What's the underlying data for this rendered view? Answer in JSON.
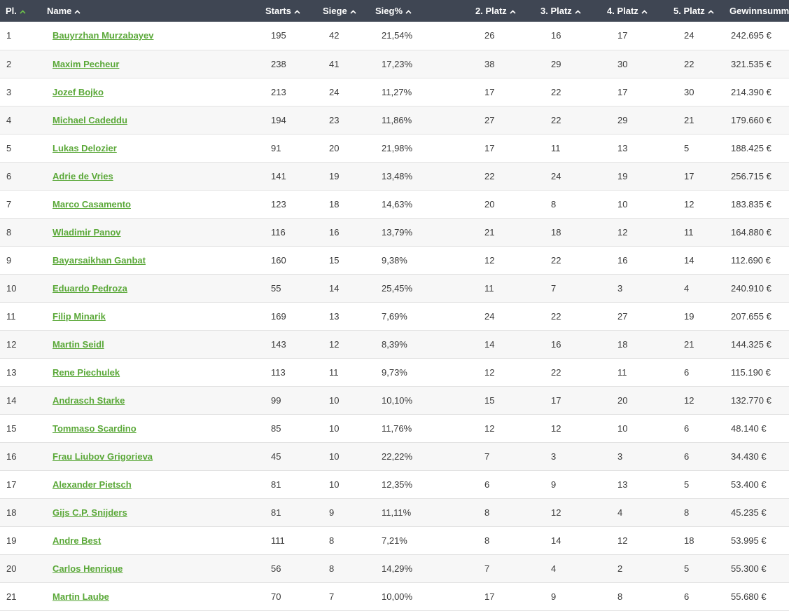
{
  "colors": {
    "header_bg": "#3f4653",
    "link": "#5aa838",
    "active_sort": "#6cc24a"
  },
  "columns": [
    {
      "key": "pl",
      "label": "Pl.",
      "sort_icon": "chevron-up-icon",
      "active": true
    },
    {
      "key": "name",
      "label": "Name",
      "sort_icon": "chevron-up-icon",
      "active": false
    },
    {
      "key": "starts",
      "label": "Starts",
      "sort_icon": "chevron-up-icon",
      "active": false
    },
    {
      "key": "siege",
      "label": "Siege",
      "sort_icon": "chevron-up-icon",
      "active": false
    },
    {
      "key": "siegpct",
      "label": "Sieg%",
      "sort_icon": "chevron-up-icon",
      "active": false
    },
    {
      "key": "p2",
      "label": "2. Platz",
      "sort_icon": "chevron-up-icon",
      "active": false
    },
    {
      "key": "p3",
      "label": "3. Platz",
      "sort_icon": "chevron-up-icon",
      "active": false
    },
    {
      "key": "p4",
      "label": "4. Platz",
      "sort_icon": "chevron-up-icon",
      "active": false
    },
    {
      "key": "p5",
      "label": "5. Platz",
      "sort_icon": "chevron-up-icon",
      "active": false
    },
    {
      "key": "gewinn",
      "label": "Gewinnsumme",
      "sort_icon": null,
      "active": false
    }
  ],
  "rows": [
    [
      "1",
      "Bauyrzhan Murzabayev",
      "195",
      "42",
      "21,54%",
      "26",
      "16",
      "17",
      "24",
      "242.695 €"
    ],
    [
      "2",
      "Maxim Pecheur",
      "238",
      "41",
      "17,23%",
      "38",
      "29",
      "30",
      "22",
      "321.535 €"
    ],
    [
      "3",
      "Jozef Bojko",
      "213",
      "24",
      "11,27%",
      "17",
      "22",
      "17",
      "30",
      "214.390 €"
    ],
    [
      "4",
      "Michael Cadeddu",
      "194",
      "23",
      "11,86%",
      "27",
      "22",
      "29",
      "21",
      "179.660 €"
    ],
    [
      "5",
      "Lukas Delozier",
      "91",
      "20",
      "21,98%",
      "17",
      "11",
      "13",
      "5",
      "188.425 €"
    ],
    [
      "6",
      "Adrie de Vries",
      "141",
      "19",
      "13,48%",
      "22",
      "24",
      "19",
      "17",
      "256.715 €"
    ],
    [
      "7",
      "Marco Casamento",
      "123",
      "18",
      "14,63%",
      "20",
      "8",
      "10",
      "12",
      "183.835 €"
    ],
    [
      "8",
      "Wladimir Panov",
      "116",
      "16",
      "13,79%",
      "21",
      "18",
      "12",
      "11",
      "164.880 €"
    ],
    [
      "9",
      "Bayarsaikhan Ganbat",
      "160",
      "15",
      "9,38%",
      "12",
      "22",
      "16",
      "14",
      "112.690 €"
    ],
    [
      "10",
      "Eduardo Pedroza",
      "55",
      "14",
      "25,45%",
      "11",
      "7",
      "3",
      "4",
      "240.910 €"
    ],
    [
      "11",
      "Filip Minarik",
      "169",
      "13",
      "7,69%",
      "24",
      "22",
      "27",
      "19",
      "207.655 €"
    ],
    [
      "12",
      "Martin Seidl",
      "143",
      "12",
      "8,39%",
      "14",
      "16",
      "18",
      "21",
      "144.325 €"
    ],
    [
      "13",
      "Rene Piechulek",
      "113",
      "11",
      "9,73%",
      "12",
      "22",
      "11",
      "6",
      "115.190 €"
    ],
    [
      "14",
      "Andrasch Starke",
      "99",
      "10",
      "10,10%",
      "15",
      "17",
      "20",
      "12",
      "132.770 €"
    ],
    [
      "15",
      "Tommaso Scardino",
      "85",
      "10",
      "11,76%",
      "12",
      "12",
      "10",
      "6",
      "48.140 €"
    ],
    [
      "16",
      "Frau Liubov Grigorieva",
      "45",
      "10",
      "22,22%",
      "7",
      "3",
      "3",
      "6",
      "34.430 €"
    ],
    [
      "17",
      "Alexander Pietsch",
      "81",
      "10",
      "12,35%",
      "6",
      "9",
      "13",
      "5",
      "53.400 €"
    ],
    [
      "18",
      "Gijs C.P. Snijders",
      "81",
      "9",
      "11,11%",
      "8",
      "12",
      "4",
      "8",
      "45.235 €"
    ],
    [
      "19",
      "Andre Best",
      "111",
      "8",
      "7,21%",
      "8",
      "14",
      "12",
      "18",
      "53.995 €"
    ],
    [
      "20",
      "Carlos Henrique",
      "56",
      "8",
      "14,29%",
      "7",
      "4",
      "2",
      "5",
      "55.300 €"
    ],
    [
      "21",
      "Martin Laube",
      "70",
      "7",
      "10,00%",
      "17",
      "9",
      "8",
      "6",
      "55.680 €"
    ]
  ]
}
